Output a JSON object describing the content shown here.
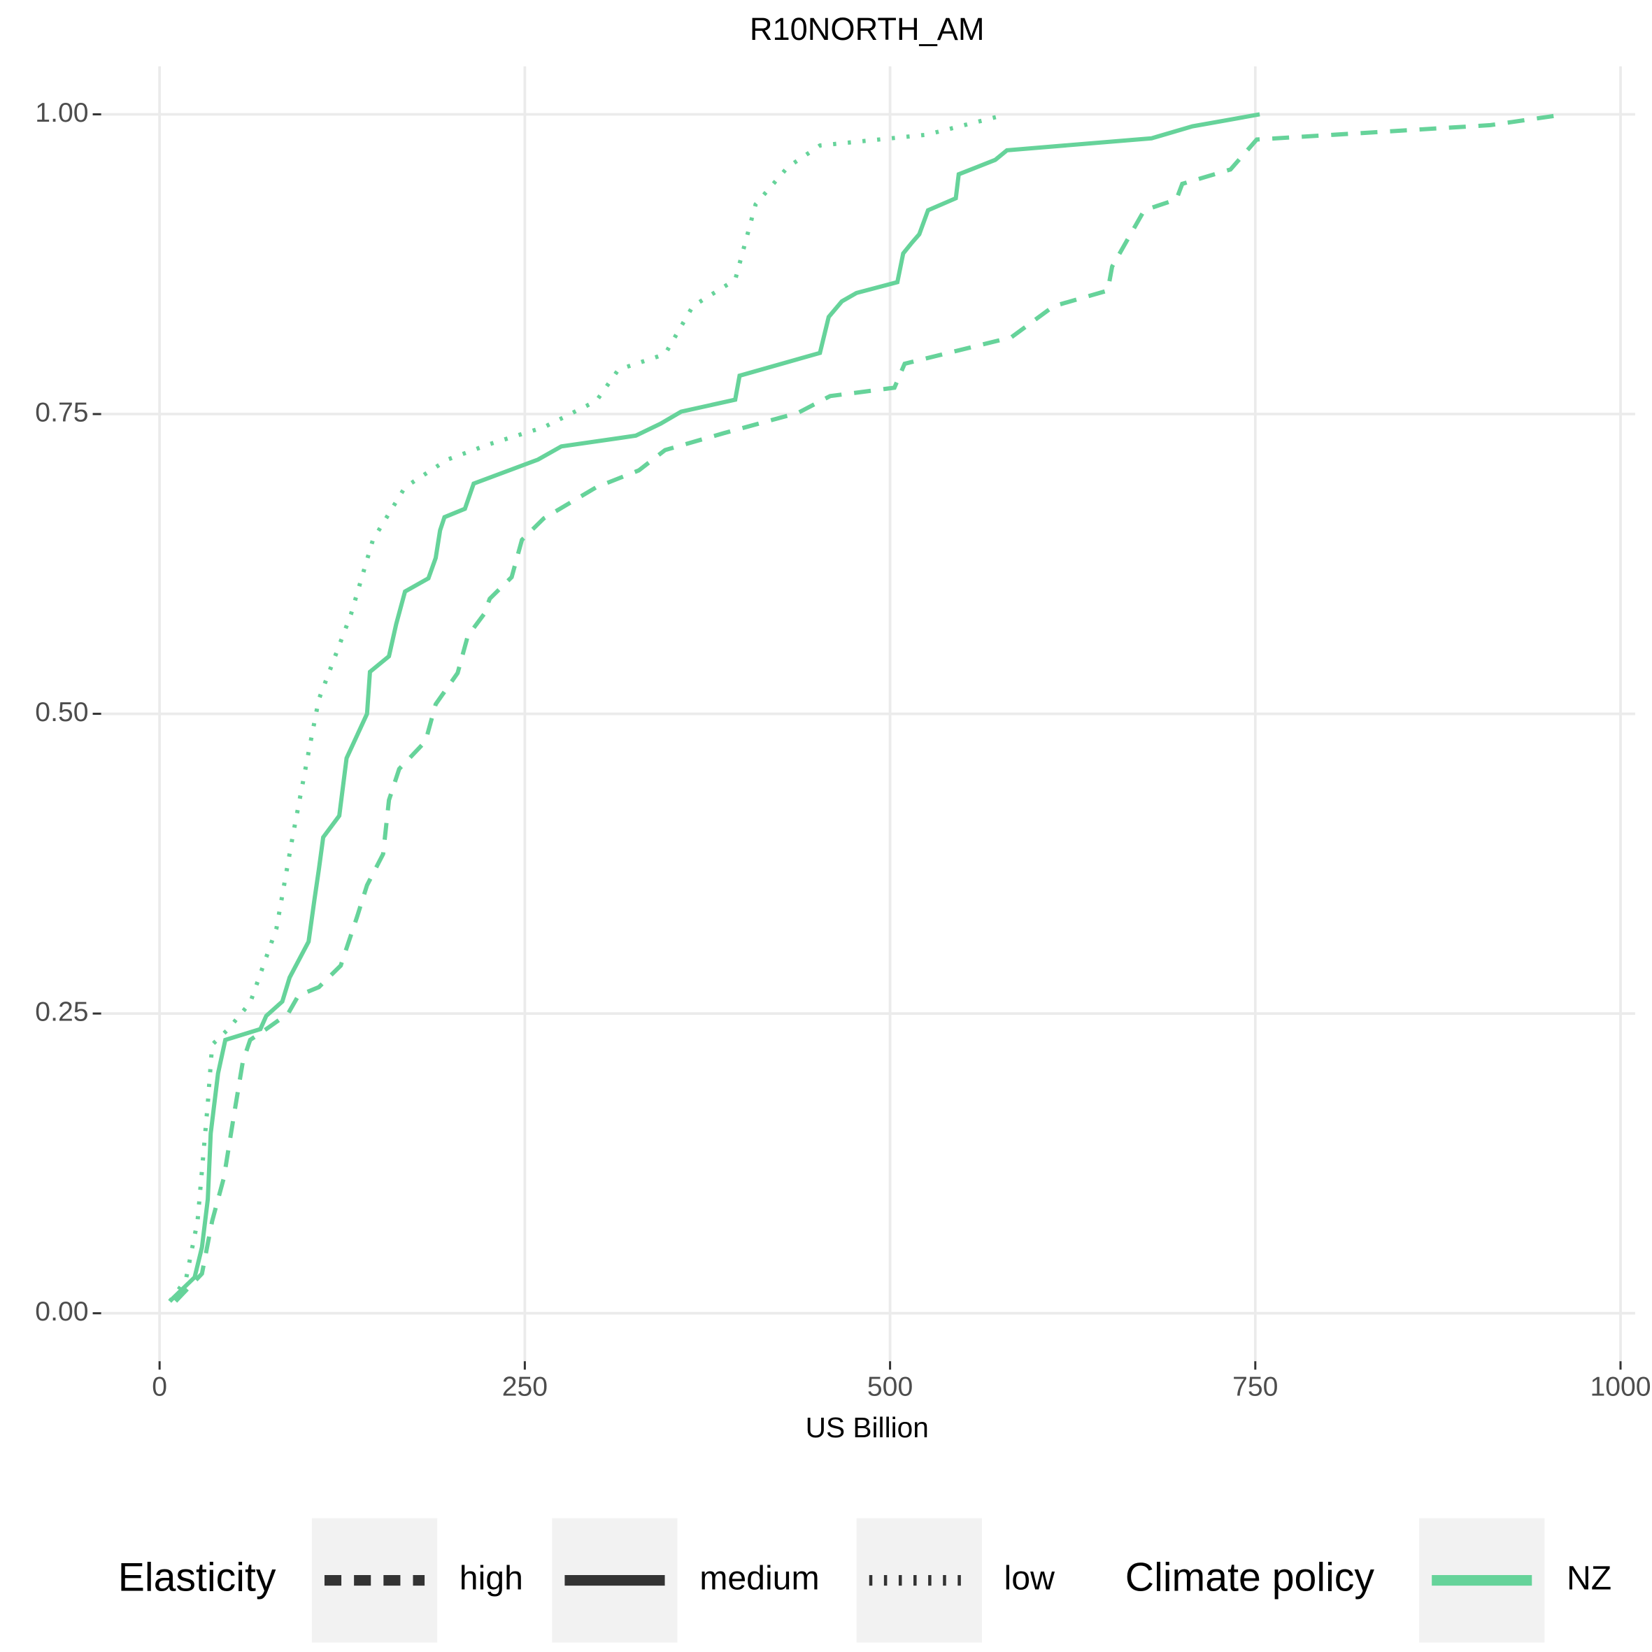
{
  "chart_data": {
    "type": "line",
    "title": "R10NORTH_AM",
    "x_label": "US Billion",
    "xlim": [
      -40,
      1010
    ],
    "ylim": [
      -0.04,
      1.04
    ],
    "xticks": [
      0,
      250,
      500,
      750,
      1000
    ],
    "yticks": [
      {
        "value": 0,
        "label": "0.00"
      },
      {
        "value": 0.25,
        "label": "0.25"
      },
      {
        "value": 0.5,
        "label": "0.50"
      },
      {
        "value": 0.75,
        "label": "0.75"
      },
      {
        "value": 1,
        "label": "1.00"
      }
    ],
    "grid": true,
    "legend_position": "bottom",
    "linetype_legend_title": "Elasticity",
    "color_legend": {
      "title": "Climate policy",
      "name": "NZ",
      "color": "#66d39a"
    },
    "series": [
      {
        "name": "high",
        "dash": "dashed",
        "x": [
          11,
          29,
          36,
          44,
          51,
          57,
          62,
          73,
          88,
          95,
          109,
          124,
          135,
          142,
          153,
          157,
          164,
          182,
          189,
          204,
          211,
          222,
          226,
          241,
          248,
          263,
          299,
          328,
          346,
          386,
          437,
          459,
          503,
          510,
          583,
          612,
          649,
          652,
          674,
          696,
          700,
          733,
          751,
          911,
          962
        ],
        "values": [
          0.01,
          0.033,
          0.077,
          0.113,
          0.166,
          0.21,
          0.228,
          0.237,
          0.25,
          0.265,
          0.272,
          0.29,
          0.33,
          0.357,
          0.383,
          0.428,
          0.454,
          0.477,
          0.508,
          0.534,
          0.565,
          0.583,
          0.596,
          0.614,
          0.645,
          0.663,
          0.689,
          0.703,
          0.72,
          0.734,
          0.751,
          0.765,
          0.772,
          0.792,
          0.814,
          0.84,
          0.853,
          0.873,
          0.92,
          0.929,
          0.942,
          0.954,
          0.979,
          0.991,
          1
        ]
      },
      {
        "name": "medium",
        "dash": "solid",
        "x": [
          7,
          24,
          29,
          33,
          35,
          40,
          45,
          69,
          73,
          84,
          89,
          102,
          106,
          109,
          112,
          123,
          128,
          142,
          144,
          157,
          162,
          168,
          184,
          189,
          192,
          195,
          209,
          215,
          259,
          275,
          326,
          343,
          357,
          394,
          397,
          452,
          458,
          467,
          477,
          505,
          509,
          515,
          520,
          526,
          545,
          547,
          572,
          580,
          679,
          707,
          753
        ],
        "values": [
          0.01,
          0.03,
          0.055,
          0.095,
          0.15,
          0.2,
          0.228,
          0.237,
          0.248,
          0.26,
          0.28,
          0.31,
          0.345,
          0.37,
          0.397,
          0.415,
          0.463,
          0.5,
          0.535,
          0.548,
          0.575,
          0.602,
          0.613,
          0.63,
          0.653,
          0.664,
          0.671,
          0.692,
          0.712,
          0.723,
          0.732,
          0.742,
          0.752,
          0.762,
          0.782,
          0.801,
          0.831,
          0.844,
          0.851,
          0.86,
          0.884,
          0.893,
          0.9,
          0.92,
          0.93,
          0.95,
          0.962,
          0.97,
          0.98,
          0.99,
          1
        ]
      },
      {
        "name": "low",
        "dash": "dotted",
        "x": [
          7,
          18,
          26,
          33,
          36,
          47,
          62,
          80,
          91,
          102,
          109,
          131,
          146,
          168,
          197,
          226,
          263,
          299,
          314,
          346,
          365,
          394,
          408,
          430,
          452,
          525,
          580
        ],
        "values": [
          0.01,
          0.028,
          0.077,
          0.175,
          0.224,
          0.237,
          0.259,
          0.321,
          0.397,
          0.468,
          0.512,
          0.583,
          0.645,
          0.689,
          0.712,
          0.725,
          0.739,
          0.761,
          0.787,
          0.8,
          0.84,
          0.862,
          0.925,
          0.956,
          0.974,
          0.983,
          1
        ]
      }
    ]
  }
}
